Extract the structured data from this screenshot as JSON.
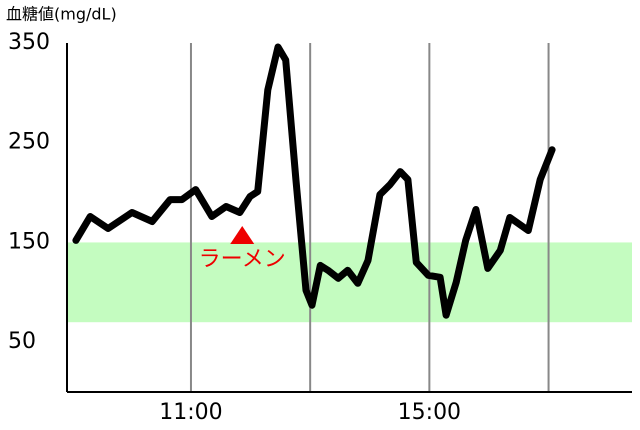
{
  "chart_data": {
    "type": "line",
    "y_label": "血糖値(mg/dL)",
    "xlim": [
      8.92,
      18.4
    ],
    "ylim": [
      0,
      350
    ],
    "yticks": [
      50,
      150,
      250,
      350
    ],
    "xticks": [
      {
        "value": 11,
        "label": "11:00"
      },
      {
        "value": 15,
        "label": "15:00"
      }
    ],
    "xgrid": [
      11,
      13,
      15,
      17
    ],
    "target_range": [
      70,
      150
    ],
    "target_color": "#c4fcc0",
    "annotation": {
      "text": "ラーメン",
      "x": 11.86,
      "color": "#ee0000"
    },
    "series": [
      {
        "name": "血糖値",
        "color": "#000000",
        "x": [
          9.07,
          9.31,
          9.61,
          10.01,
          10.35,
          10.65,
          10.85,
          11.08,
          11.35,
          11.59,
          11.82,
          11.99,
          12.12,
          12.29,
          12.46,
          12.59,
          12.76,
          12.93,
          13.03,
          13.17,
          13.3,
          13.47,
          13.63,
          13.8,
          13.97,
          14.17,
          14.34,
          14.51,
          14.64,
          14.78,
          14.98,
          15.18,
          15.28,
          15.45,
          15.61,
          15.78,
          15.98,
          16.19,
          16.35,
          16.66,
          16.86,
          17.06
        ],
        "values": [
          152,
          176,
          164,
          180,
          171,
          193,
          193,
          203,
          176,
          186,
          180,
          196,
          201,
          303,
          346,
          333,
          213,
          102,
          87,
          127,
          122,
          114,
          122,
          109,
          132,
          198,
          208,
          221,
          213,
          130,
          117,
          115,
          77,
          110,
          152,
          183,
          124,
          142,
          175,
          162,
          213,
          243
        ]
      }
    ]
  }
}
